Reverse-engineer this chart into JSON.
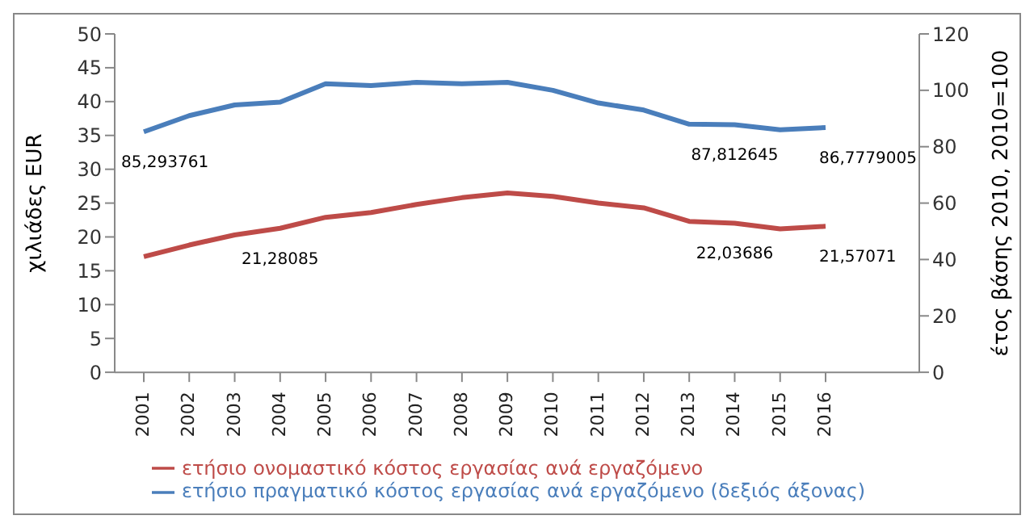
{
  "chart_data": {
    "type": "line",
    "categories": [
      "2001",
      "2002",
      "2003",
      "2004",
      "2005",
      "2006",
      "2007",
      "2008",
      "2009",
      "2010",
      "2011",
      "2012",
      "2013",
      "2014",
      "2015",
      "2016"
    ],
    "ylabel": "χιλιάδες EUR",
    "y2label": "έτος βάσης 2010, 2010=100",
    "ylim": [
      0,
      50
    ],
    "yticks": [
      0,
      5,
      10,
      15,
      20,
      25,
      30,
      35,
      40,
      45,
      50
    ],
    "y2lim": [
      0,
      120
    ],
    "y2ticks": [
      0,
      20,
      40,
      60,
      80,
      100,
      120
    ],
    "legend": "bottom",
    "grid": false,
    "marker": "none",
    "line_style": "solid",
    "series": [
      {
        "name": "ετήσιο ονομαστικό κόστος εργασίας ανά εργαζόμενο",
        "color": "#be4b48",
        "values": [
          17.1,
          18.8,
          20.3,
          21.28085,
          22.9,
          23.6,
          24.8,
          25.8,
          26.5,
          26.0,
          25.0,
          24.3,
          22.3,
          22.03686,
          21.2,
          21.57071
        ],
        "value_labels": [
          null,
          null,
          null,
          "21,28085",
          null,
          null,
          null,
          null,
          null,
          null,
          null,
          null,
          null,
          "22,03686",
          null,
          "21,57071"
        ]
      },
      {
        "name": "ετήσιο πραγματικό κόστος εργασίας ανά εργαζόμενο (δεξιός άξονας)",
        "color": "#4a7ebb",
        "axis": "y2",
        "values": [
          85.293761,
          91,
          94.8,
          95.8,
          102.3,
          101.7,
          102.8,
          102.3,
          102.8,
          100,
          95.5,
          93,
          88,
          87.812645,
          86,
          86.7779005
        ],
        "value_labels": [
          "85,293761",
          null,
          null,
          null,
          null,
          null,
          null,
          null,
          null,
          null,
          null,
          null,
          null,
          "87,812645",
          null,
          "86,7779005"
        ]
      }
    ]
  }
}
